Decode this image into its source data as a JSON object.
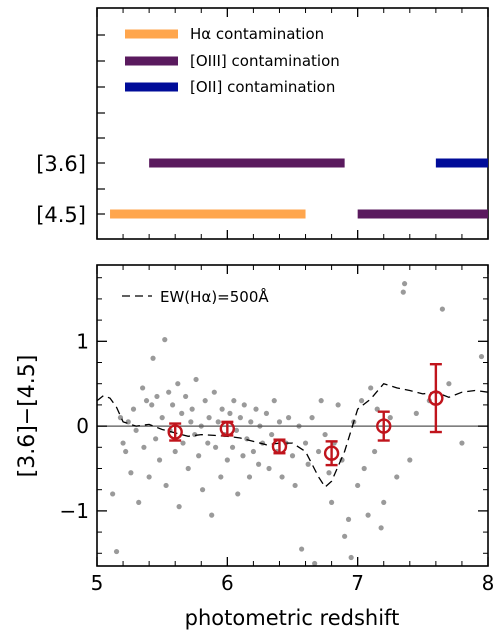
{
  "chart_data": [
    {
      "type": "line",
      "panel": "top",
      "legend": [
        {
          "label": "Hα contamination",
          "color": "#FFA64D"
        },
        {
          "label": "[OIII] contamination",
          "color": "#5A1A5E"
        },
        {
          "label": "[OII] contamination",
          "color": "#000C99"
        }
      ],
      "bands": [
        {
          "band": "[3.6]",
          "segments": [
            {
              "from": 5.4,
              "to": 6.9,
              "series": "[OIII] contamination",
              "color": "#5A1A5E"
            },
            {
              "from": 7.6,
              "to": 8.0,
              "series": "[OII] contamination",
              "color": "#000C99"
            }
          ]
        },
        {
          "band": "[4.5]",
          "segments": [
            {
              "from": 5.1,
              "to": 6.6,
              "series": "Hα contamination",
              "color": "#FFA64D"
            },
            {
              "from": 7.0,
              "to": 8.0,
              "series": "[OIII] contamination",
              "color": "#5A1A5E"
            }
          ]
        }
      ],
      "xlim": [
        5,
        8
      ]
    },
    {
      "type": "scatter",
      "panel": "bottom",
      "xlabel": "photometric redshift",
      "ylabel": "[3.6]−[4.5]",
      "xlim": [
        5,
        8
      ],
      "ylim": [
        -1.65,
        1.9
      ],
      "xticks": [
        "5",
        "6",
        "7",
        "8"
      ],
      "yticks": [
        "−1",
        "0",
        "1"
      ],
      "zero_line": 0,
      "model_label": "EW(Hα)=500Å",
      "model_curve": {
        "x": [
          5.0,
          5.05,
          5.1,
          5.15,
          5.2,
          5.3,
          5.4,
          5.5,
          5.6,
          5.7,
          5.8,
          5.9,
          6.0,
          6.1,
          6.2,
          6.3,
          6.4,
          6.5,
          6.6,
          6.65,
          6.7,
          6.75,
          6.8,
          6.9,
          7.0,
          7.1,
          7.2,
          7.3,
          7.4,
          7.5,
          7.6,
          7.7,
          7.8,
          7.9,
          8.0
        ],
        "y": [
          0.3,
          0.36,
          0.33,
          0.22,
          0.05,
          0.0,
          0.02,
          -0.04,
          -0.08,
          -0.12,
          -0.1,
          -0.11,
          -0.12,
          -0.14,
          -0.18,
          -0.22,
          -0.2,
          -0.2,
          -0.3,
          -0.45,
          -0.6,
          -0.72,
          -0.65,
          -0.3,
          0.2,
          0.32,
          0.5,
          0.45,
          0.42,
          0.38,
          0.4,
          0.34,
          0.4,
          0.42,
          0.4
        ]
      },
      "binned_points": [
        {
          "x": 5.6,
          "y": -0.07,
          "err": 0.1
        },
        {
          "x": 6.0,
          "y": -0.03,
          "err": 0.08
        },
        {
          "x": 6.4,
          "y": -0.24,
          "err": 0.08
        },
        {
          "x": 6.8,
          "y": -0.32,
          "err": 0.14
        },
        {
          "x": 7.2,
          "y": 0.0,
          "err": 0.17
        },
        {
          "x": 7.6,
          "y": 0.33,
          "err": 0.4
        }
      ],
      "scatter_points": [
        [
          5.12,
          -0.8
        ],
        [
          5.15,
          -1.48
        ],
        [
          5.18,
          0.1
        ],
        [
          5.2,
          -0.2
        ],
        [
          5.22,
          -0.3
        ],
        [
          5.24,
          0.05
        ],
        [
          5.26,
          -0.55
        ],
        [
          5.28,
          0.2
        ],
        [
          5.3,
          -0.05
        ],
        [
          5.32,
          -0.9
        ],
        [
          5.35,
          0.45
        ],
        [
          5.36,
          -0.25
        ],
        [
          5.38,
          0.3
        ],
        [
          5.4,
          -0.6
        ],
        [
          5.42,
          0.25
        ],
        [
          5.43,
          0.8
        ],
        [
          5.45,
          -0.15
        ],
        [
          5.46,
          0.35
        ],
        [
          5.48,
          -0.4
        ],
        [
          5.5,
          0.1
        ],
        [
          5.52,
          1.02
        ],
        [
          5.53,
          -0.7
        ],
        [
          5.55,
          0.4
        ],
        [
          5.56,
          -0.05
        ],
        [
          5.58,
          0.25
        ],
        [
          5.6,
          -0.3
        ],
        [
          5.62,
          0.5
        ],
        [
          5.63,
          -0.95
        ],
        [
          5.65,
          0.15
        ],
        [
          5.66,
          -0.2
        ],
        [
          5.68,
          0.35
        ],
        [
          5.7,
          -0.5
        ],
        [
          5.72,
          0.05
        ],
        [
          5.73,
          0.2
        ],
        [
          5.75,
          -0.1
        ],
        [
          5.76,
          0.55
        ],
        [
          5.78,
          -0.35
        ],
        [
          5.8,
          0.0
        ],
        [
          5.81,
          -0.75
        ],
        [
          5.83,
          0.3
        ],
        [
          5.85,
          -0.2
        ],
        [
          5.86,
          0.1
        ],
        [
          5.88,
          -1.05
        ],
        [
          5.9,
          0.4
        ],
        [
          5.91,
          -0.25
        ],
        [
          5.93,
          0.05
        ],
        [
          5.95,
          -0.6
        ],
        [
          5.96,
          0.2
        ],
        [
          5.98,
          -0.1
        ],
        [
          6.0,
          -0.4
        ],
        [
          6.02,
          0.15
        ],
        [
          6.04,
          -0.25
        ],
        [
          6.05,
          0.3
        ],
        [
          6.07,
          -0.05
        ],
        [
          6.08,
          -0.8
        ],
        [
          6.1,
          0.1
        ],
        [
          6.12,
          -0.35
        ],
        [
          6.13,
          0.25
        ],
        [
          6.15,
          -0.15
        ],
        [
          6.17,
          -0.6
        ],
        [
          6.18,
          0.05
        ],
        [
          6.2,
          -0.3
        ],
        [
          6.22,
          0.2
        ],
        [
          6.24,
          -0.45
        ],
        [
          6.25,
          0.0
        ],
        [
          6.27,
          -0.2
        ],
        [
          6.3,
          0.15
        ],
        [
          6.32,
          -0.5
        ],
        [
          6.34,
          -0.1
        ],
        [
          6.36,
          0.3
        ],
        [
          6.38,
          -0.3
        ],
        [
          6.4,
          0.05
        ],
        [
          6.42,
          -0.6
        ],
        [
          6.45,
          -0.2
        ],
        [
          6.47,
          0.1
        ],
        [
          6.5,
          -0.35
        ],
        [
          6.52,
          -0.7
        ],
        [
          6.55,
          0.0
        ],
        [
          6.57,
          -1.45
        ],
        [
          6.6,
          -0.2
        ],
        [
          6.62,
          -0.45
        ],
        [
          6.65,
          0.1
        ],
        [
          6.67,
          -1.62
        ],
        [
          6.7,
          -0.3
        ],
        [
          6.72,
          0.3
        ],
        [
          6.75,
          -0.1
        ],
        [
          6.78,
          -0.55
        ],
        [
          6.8,
          -0.9
        ],
        [
          6.82,
          -0.2
        ],
        [
          6.85,
          0.25
        ],
        [
          6.88,
          -0.4
        ],
        [
          6.9,
          -1.3
        ],
        [
          6.93,
          -1.1
        ],
        [
          6.95,
          -1.55
        ],
        [
          6.97,
          0.05
        ],
        [
          7.0,
          -0.7
        ],
        [
          7.03,
          0.3
        ],
        [
          7.05,
          -0.5
        ],
        [
          7.08,
          -1.05
        ],
        [
          7.1,
          0.45
        ],
        [
          7.13,
          -0.3
        ],
        [
          7.15,
          0.2
        ],
        [
          7.18,
          -1.2
        ],
        [
          7.2,
          -0.9
        ],
        [
          7.25,
          0.1
        ],
        [
          7.3,
          -0.6
        ],
        [
          7.35,
          1.58
        ],
        [
          7.36,
          1.68
        ],
        [
          7.4,
          -0.4
        ],
        [
          7.45,
          0.15
        ],
        [
          7.55,
          0.3
        ],
        [
          7.65,
          1.38
        ],
        [
          7.7,
          0.5
        ],
        [
          7.8,
          -0.2
        ],
        [
          7.95,
          0.82
        ]
      ],
      "colors": {
        "scatter": "#9A9A9A",
        "binned": "#C0141C",
        "model": "#000000",
        "zero_line": "#555555"
      }
    }
  ]
}
